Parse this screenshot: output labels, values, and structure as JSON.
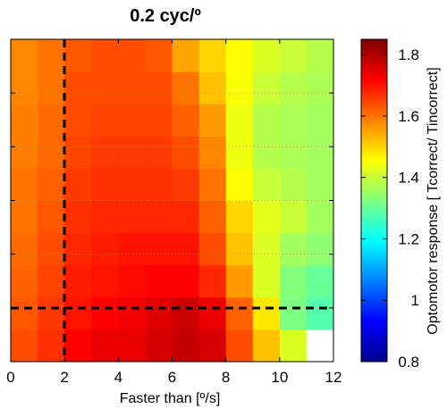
{
  "chart_data": {
    "type": "heatmap",
    "title": "0.2 cyc/º",
    "xlabel": "Faster than [º/s]",
    "ylabel": "",
    "xlim": [
      0,
      12
    ],
    "xticks": [
      0,
      2,
      4,
      6,
      8,
      10,
      12
    ],
    "xtick_labels": [
      "0",
      "2",
      "4",
      "6",
      "8",
      "10",
      "12"
    ],
    "yticks_count": 6,
    "reference_lines": {
      "vertical_x": 2,
      "horizontal_fraction_from_bottom": 0.165,
      "style": "dashed black"
    },
    "colorbar": {
      "label": "Optomotor response [ Tcorrect/ Tincorrect]",
      "min": 0.8,
      "max": 1.85,
      "ticks": [
        0.8,
        1,
        1.2,
        1.4,
        1.6,
        1.8
      ],
      "tick_labels": [
        "0.8",
        "1",
        "1.2",
        "1.4",
        "1.6",
        "1.8"
      ],
      "colormap": "jet"
    },
    "x_bins": [
      0.5,
      1.5,
      2.5,
      3.5,
      4.5,
      5.5,
      6.5,
      7.5,
      8.5,
      9.5,
      10.5,
      11.5
    ],
    "row_positions_from_bottom": [
      0.05,
      0.15,
      0.25,
      0.35,
      0.45,
      0.55,
      0.65,
      0.75,
      0.85,
      0.95
    ],
    "values": [
      [
        1.64,
        1.67,
        1.72,
        1.74,
        1.74,
        1.76,
        1.78,
        1.76,
        1.64,
        1.52,
        1.42,
        null
      ],
      [
        1.63,
        1.66,
        1.7,
        1.72,
        1.73,
        1.75,
        1.77,
        1.74,
        1.62,
        1.48,
        1.32,
        1.28
      ],
      [
        1.62,
        1.65,
        1.69,
        1.7,
        1.71,
        1.72,
        1.72,
        1.68,
        1.56,
        1.42,
        1.33,
        1.3
      ],
      [
        1.61,
        1.64,
        1.68,
        1.69,
        1.7,
        1.7,
        1.7,
        1.64,
        1.52,
        1.42,
        1.36,
        1.34
      ],
      [
        1.6,
        1.63,
        1.67,
        1.68,
        1.68,
        1.68,
        1.68,
        1.62,
        1.5,
        1.43,
        1.4,
        1.36
      ],
      [
        1.6,
        1.62,
        1.66,
        1.67,
        1.67,
        1.67,
        1.66,
        1.6,
        1.46,
        1.4,
        1.38,
        1.36
      ],
      [
        1.59,
        1.61,
        1.65,
        1.66,
        1.66,
        1.66,
        1.64,
        1.58,
        1.44,
        1.38,
        1.37,
        1.36
      ],
      [
        1.59,
        1.61,
        1.64,
        1.65,
        1.65,
        1.65,
        1.62,
        1.56,
        1.44,
        1.38,
        1.37,
        1.36
      ],
      [
        1.58,
        1.6,
        1.64,
        1.64,
        1.64,
        1.64,
        1.6,
        1.52,
        1.45,
        1.4,
        1.38,
        1.37
      ],
      [
        1.58,
        1.6,
        1.63,
        1.64,
        1.64,
        1.63,
        1.55,
        1.5,
        1.46,
        1.42,
        1.4,
        1.38
      ]
    ]
  }
}
